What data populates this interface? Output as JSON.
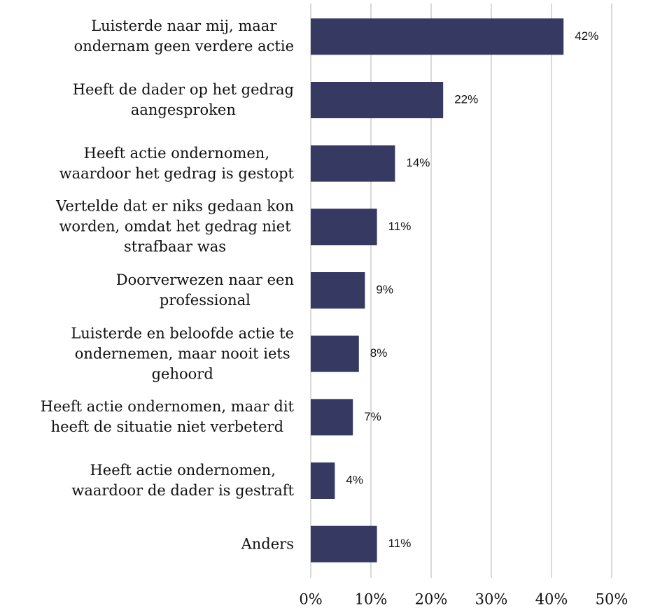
{
  "chart_data": {
    "type": "bar",
    "orientation": "horizontal",
    "categories": [
      "Luisterde naar mij, maar\nondernam geen verdere actie",
      "Heeft de dader op het gedrag\naangesproken",
      "Heeft actie ondernomen,\nwaardoor het gedrag is gestopt",
      "Vertelde dat er niks gedaan kon\nworden, omdat het gedrag niet\nstrafbaar was",
      "Doorverwezen naar een\nprofessional",
      "Luisterde en beloofde actie te\nondernemen, maar nooit iets\ngehoord",
      "Heeft actie ondernomen, maar dit\nheeft de situatie niet verbeterd",
      "Heeft actie ondernomen,\nwaardoor de dader is gestraft",
      "Anders"
    ],
    "values": [
      42,
      22,
      14,
      11,
      9,
      8,
      7,
      4,
      11
    ],
    "value_labels": [
      "42%",
      "22%",
      "14%",
      "11%",
      "9%",
      "8%",
      "7%",
      "4%",
      "11%"
    ],
    "color": "#363a63",
    "xlim": [
      0,
      50
    ],
    "xticks": [
      {
        "value": 0,
        "label": "0%"
      },
      {
        "value": 10,
        "label": "10%"
      },
      {
        "value": 20,
        "label": "20%"
      },
      {
        "value": 30,
        "label": "30%"
      },
      {
        "value": 40,
        "label": "40%"
      },
      {
        "value": 50,
        "label": "50%"
      }
    ],
    "grid": true
  }
}
